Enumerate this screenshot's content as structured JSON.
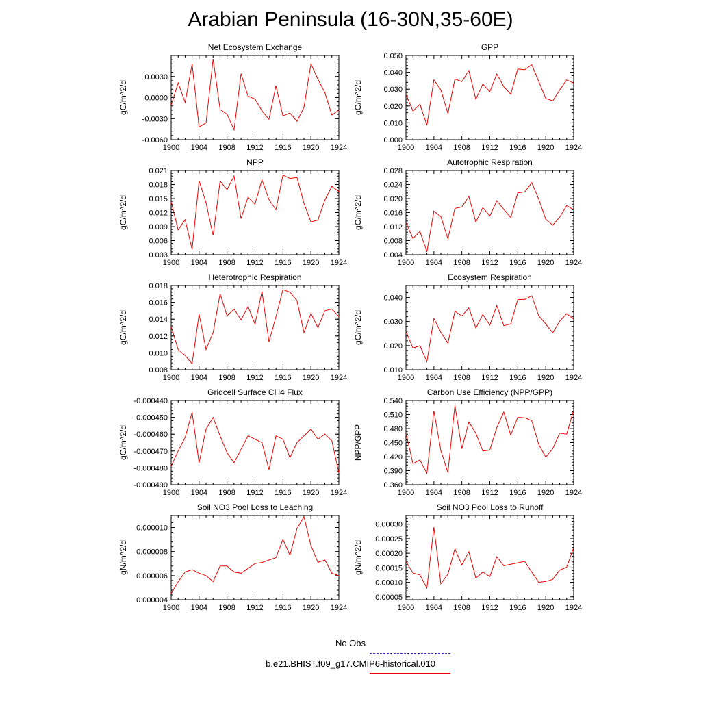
{
  "figure": {
    "title": "Arabian Peninsula (16-30N,35-60E)",
    "line_color": "#ee0000",
    "obs_color": "#3333cc"
  },
  "legend": {
    "obs_label": "No Obs",
    "model_label": "b.e21.BHIST.f09_g17.CMIP6-historical.010"
  },
  "chart_data": [
    {
      "type": "line",
      "title": "Net Ecosystem Exchange",
      "ylabel": "gC/m^2/d",
      "x": [
        1900,
        1901,
        1902,
        1903,
        1904,
        1905,
        1906,
        1907,
        1908,
        1909,
        1910,
        1911,
        1912,
        1913,
        1914,
        1915,
        1916,
        1917,
        1918,
        1919,
        1920,
        1921,
        1922,
        1923,
        1924
      ],
      "values": [
        -0.0011,
        0.0021,
        -0.0007,
        0.0048,
        -0.0042,
        -0.0036,
        0.0055,
        -0.0017,
        -0.0024,
        -0.0046,
        0.0034,
        0.0002,
        -0.0002,
        -0.0019,
        -0.0031,
        0.0017,
        -0.0026,
        -0.0022,
        -0.0034,
        -0.0014,
        0.0048,
        0.0026,
        0.0007,
        -0.0025,
        -0.0018
      ],
      "ylim": [
        -0.006,
        0.006
      ],
      "yticks": [
        "-0.0060",
        "-0.0030",
        "0.0000",
        "0.0030"
      ],
      "ytick_values": [
        -0.006,
        -0.003,
        0.0,
        0.003
      ],
      "xlim": [
        1900,
        1924
      ],
      "xticks": [
        "1900",
        "1904",
        "1908",
        "1912",
        "1916",
        "1920",
        "1924"
      ]
    },
    {
      "type": "line",
      "title": "GPP",
      "ylabel": "gC/m^2/d",
      "x": [
        1900,
        1901,
        1902,
        1903,
        1904,
        1905,
        1906,
        1907,
        1908,
        1909,
        1910,
        1911,
        1912,
        1913,
        1914,
        1915,
        1916,
        1917,
        1918,
        1919,
        1920,
        1921,
        1922,
        1923,
        1924
      ],
      "values": [
        0.027,
        0.017,
        0.021,
        0.0085,
        0.0355,
        0.0295,
        0.0155,
        0.036,
        0.0345,
        0.041,
        0.024,
        0.033,
        0.0285,
        0.039,
        0.0315,
        0.027,
        0.042,
        0.0415,
        0.0445,
        0.0345,
        0.0245,
        0.023,
        0.0295,
        0.0355,
        0.0335
      ],
      "ylim": [
        0.0,
        0.05
      ],
      "yticks": [
        "0.000",
        "0.010",
        "0.020",
        "0.030",
        "0.040",
        "0.050"
      ],
      "ytick_values": [
        0.0,
        0.01,
        0.02,
        0.03,
        0.04,
        0.05
      ],
      "xlim": [
        1900,
        1924
      ],
      "xticks": [
        "1900",
        "1904",
        "1908",
        "1912",
        "1916",
        "1920",
        "1924"
      ]
    },
    {
      "type": "line",
      "title": "NPP",
      "ylabel": "gC/m^2/d",
      "x": [
        1900,
        1901,
        1902,
        1903,
        1904,
        1905,
        1906,
        1907,
        1908,
        1909,
        1910,
        1911,
        1912,
        1913,
        1914,
        1915,
        1916,
        1917,
        1918,
        1919,
        1920,
        1921,
        1922,
        1923,
        1924
      ],
      "values": [
        0.0143,
        0.0083,
        0.0105,
        0.0041,
        0.0188,
        0.0141,
        0.0071,
        0.0187,
        0.0169,
        0.0198,
        0.0107,
        0.0153,
        0.0138,
        0.019,
        0.0148,
        0.0126,
        0.02,
        0.0193,
        0.0195,
        0.014,
        0.01,
        0.0104,
        0.0147,
        0.0176,
        0.0165
      ],
      "ylim": [
        0.003,
        0.021
      ],
      "yticks": [
        "0.003",
        "0.006",
        "0.009",
        "0.012",
        "0.015",
        "0.018",
        "0.021"
      ],
      "ytick_values": [
        0.003,
        0.006,
        0.009,
        0.012,
        0.015,
        0.018,
        0.021
      ],
      "xlim": [
        1900,
        1924
      ],
      "xticks": [
        "1900",
        "1904",
        "1908",
        "1912",
        "1916",
        "1920",
        "1924"
      ]
    },
    {
      "type": "line",
      "title": "Autotrophic Respiration",
      "ylabel": "gC/m^2/d",
      "x": [
        1900,
        1901,
        1902,
        1903,
        1904,
        1905,
        1906,
        1907,
        1908,
        1909,
        1910,
        1911,
        1912,
        1913,
        1914,
        1915,
        1916,
        1917,
        1918,
        1919,
        1920,
        1921,
        1922,
        1923,
        1924
      ],
      "values": [
        0.0132,
        0.0086,
        0.0106,
        0.0048,
        0.0164,
        0.0148,
        0.0085,
        0.0172,
        0.0176,
        0.0206,
        0.0133,
        0.0174,
        0.015,
        0.0194,
        0.0169,
        0.0146,
        0.0216,
        0.0219,
        0.0245,
        0.0198,
        0.0141,
        0.0124,
        0.0147,
        0.018,
        0.0168
      ],
      "ylim": [
        0.004,
        0.028
      ],
      "yticks": [
        "0.004",
        "0.008",
        "0.012",
        "0.016",
        "0.020",
        "0.024",
        "0.028"
      ],
      "ytick_values": [
        0.004,
        0.008,
        0.012,
        0.016,
        0.02,
        0.024,
        0.028
      ],
      "xlim": [
        1900,
        1924
      ],
      "xticks": [
        "1900",
        "1904",
        "1908",
        "1912",
        "1916",
        "1920",
        "1924"
      ]
    },
    {
      "type": "line",
      "title": "Heterotrophic Respiration",
      "ylabel": "gC/m^2/d",
      "x": [
        1900,
        1901,
        1902,
        1903,
        1904,
        1905,
        1906,
        1907,
        1908,
        1909,
        1910,
        1911,
        1912,
        1913,
        1914,
        1915,
        1916,
        1917,
        1918,
        1919,
        1920,
        1921,
        1922,
        1923,
        1924
      ],
      "values": [
        0.0131,
        0.0104,
        0.0097,
        0.0087,
        0.0146,
        0.0104,
        0.0124,
        0.017,
        0.0144,
        0.0152,
        0.0139,
        0.0155,
        0.0134,
        0.0173,
        0.0113,
        0.0143,
        0.0175,
        0.0172,
        0.0162,
        0.0124,
        0.0147,
        0.013,
        0.015,
        0.0152,
        0.0143
      ],
      "ylim": [
        0.008,
        0.018
      ],
      "yticks": [
        "0.008",
        "0.010",
        "0.012",
        "0.014",
        "0.016",
        "0.018"
      ],
      "ytick_values": [
        0.008,
        0.01,
        0.012,
        0.014,
        0.016,
        0.018
      ],
      "xlim": [
        1900,
        1924
      ],
      "xticks": [
        "1900",
        "1904",
        "1908",
        "1912",
        "1916",
        "1920",
        "1924"
      ]
    },
    {
      "type": "line",
      "title": "Ecosystem Respiration",
      "ylabel": "gC/m^2/d",
      "x": [
        1900,
        1901,
        1902,
        1903,
        1904,
        1905,
        1906,
        1907,
        1908,
        1909,
        1910,
        1911,
        1912,
        1913,
        1914,
        1915,
        1916,
        1917,
        1918,
        1919,
        1920,
        1921,
        1922,
        1923,
        1924
      ],
      "values": [
        0.026,
        0.019,
        0.02,
        0.0133,
        0.0313,
        0.0255,
        0.021,
        0.0343,
        0.0323,
        0.0357,
        0.0273,
        0.033,
        0.0285,
        0.0367,
        0.0283,
        0.029,
        0.0392,
        0.0392,
        0.0407,
        0.0324,
        0.029,
        0.0253,
        0.0302,
        0.0333,
        0.031
      ],
      "ylim": [
        0.01,
        0.045
      ],
      "yticks": [
        "0.010",
        "0.020",
        "0.030",
        "0.040"
      ],
      "ytick_values": [
        0.01,
        0.02,
        0.03,
        0.04
      ],
      "xlim": [
        1900,
        1924
      ],
      "xticks": [
        "1900",
        "1904",
        "1908",
        "1912",
        "1916",
        "1920",
        "1924"
      ]
    },
    {
      "type": "line",
      "title": "Gridcell Surface CH4 Flux",
      "ylabel": "gC/m^2/d",
      "x": [
        1900,
        1901,
        1902,
        1903,
        1904,
        1905,
        1906,
        1907,
        1908,
        1909,
        1910,
        1911,
        1912,
        1913,
        1914,
        1915,
        1916,
        1917,
        1918,
        1919,
        1920,
        1921,
        1922,
        1923,
        1924
      ],
      "values": [
        -0.000479,
        -0.00047,
        -0.000462,
        -0.000447,
        -0.000477,
        -0.000457,
        -0.00045,
        -0.000461,
        -0.000471,
        -0.000477,
        -0.000469,
        -0.000461,
        -0.000463,
        -0.000465,
        -0.000481,
        -0.000461,
        -0.000463,
        -0.000474,
        -0.000465,
        -0.000461,
        -0.000457,
        -0.000463,
        -0.00046,
        -0.000464,
        -0.000483
      ],
      "ylim": [
        -0.00049,
        -0.00044
      ],
      "yticks": [
        "-0.000490",
        "-0.000480",
        "-0.000470",
        "-0.000460",
        "-0.000450",
        "-0.000440"
      ],
      "ytick_values": [
        -0.00049,
        -0.00048,
        -0.00047,
        -0.00046,
        -0.00045,
        -0.00044
      ],
      "xlim": [
        1900,
        1924
      ],
      "xticks": [
        "1900",
        "1904",
        "1908",
        "1912",
        "1916",
        "1920",
        "1924"
      ]
    },
    {
      "type": "line",
      "title": "Carbon Use Efficiency (NPP/GPP)",
      "ylabel": "NPP/GPP",
      "x": [
        1900,
        1901,
        1902,
        1903,
        1904,
        1905,
        1906,
        1907,
        1908,
        1909,
        1910,
        1911,
        1912,
        1913,
        1914,
        1915,
        1916,
        1917,
        1918,
        1919,
        1920,
        1921,
        1922,
        1923,
        1924
      ],
      "values": [
        0.471,
        0.405,
        0.413,
        0.384,
        0.518,
        0.433,
        0.386,
        0.529,
        0.437,
        0.494,
        0.47,
        0.432,
        0.434,
        0.482,
        0.515,
        0.466,
        0.504,
        0.503,
        0.497,
        0.446,
        0.419,
        0.437,
        0.47,
        0.468,
        0.52
      ],
      "ylim": [
        0.36,
        0.54
      ],
      "yticks": [
        "0.360",
        "0.390",
        "0.420",
        "0.450",
        "0.480",
        "0.510",
        "0.540"
      ],
      "ytick_values": [
        0.36,
        0.39,
        0.42,
        0.45,
        0.48,
        0.51,
        0.54
      ],
      "xlim": [
        1900,
        1924
      ],
      "xticks": [
        "1900",
        "1904",
        "1908",
        "1912",
        "1916",
        "1920",
        "1924"
      ]
    },
    {
      "type": "line",
      "title": "Soil NO3 Pool Loss to Leaching",
      "ylabel": "gN/m^2/d",
      "x": [
        1900,
        1901,
        1902,
        1903,
        1904,
        1905,
        1906,
        1907,
        1908,
        1909,
        1910,
        1911,
        1912,
        1913,
        1914,
        1915,
        1916,
        1917,
        1918,
        1919,
        1920,
        1921,
        1922,
        1923,
        1924
      ],
      "values": [
        4.5e-06,
        5.5e-06,
        6.3e-06,
        6.5e-06,
        6.2e-06,
        6e-06,
        5.5e-06,
        6.8e-06,
        6.8e-06,
        6.3e-06,
        6.2e-06,
        6.6e-06,
        7e-06,
        7.1e-06,
        7.3e-06,
        7.5e-06,
        9e-06,
        7.7e-06,
        9.9e-06,
        1.09e-05,
        8.5e-06,
        7.1e-06,
        7.3e-06,
        6.2e-06,
        6e-06
      ],
      "ylim": [
        4e-06,
        1.1e-05
      ],
      "yticks": [
        "0.000004",
        "0.000006",
        "0.000008",
        "0.000010"
      ],
      "ytick_values": [
        4e-06,
        6e-06,
        8e-06,
        1e-05
      ],
      "xlim": [
        1900,
        1924
      ],
      "xticks": [
        "1900",
        "1904",
        "1908",
        "1912",
        "1916",
        "1920",
        "1924"
      ]
    },
    {
      "type": "line",
      "title": "Soil NO3 Pool Loss to Runoff",
      "ylabel": "gN/m^2/d",
      "x": [
        1900,
        1901,
        1902,
        1903,
        1904,
        1905,
        1906,
        1907,
        1908,
        1909,
        1910,
        1911,
        1912,
        1913,
        1914,
        1915,
        1916,
        1917,
        1918,
        1919,
        1920,
        1921,
        1922,
        1923,
        1924
      ],
      "values": [
        0.000172,
        0.000132,
        0.000125,
        8e-05,
        0.00029,
        9.5e-05,
        0.000128,
        0.000215,
        0.00016,
        0.000205,
        0.000115,
        0.000135,
        0.00012,
        0.000188,
        0.000157,
        0.000162,
        0.000167,
        0.000172,
        0.000135,
        0.0001,
        0.000103,
        0.00011,
        0.000142,
        0.000152,
        0.00022
      ],
      "ylim": [
        4e-05,
        0.00033
      ],
      "yticks": [
        "0.00005",
        "0.00010",
        "0.00015",
        "0.00020",
        "0.00025",
        "0.00030"
      ],
      "ytick_values": [
        5e-05,
        0.0001,
        0.00015,
        0.0002,
        0.00025,
        0.0003
      ],
      "xlim": [
        1900,
        1924
      ],
      "xticks": [
        "1900",
        "1904",
        "1908",
        "1912",
        "1916",
        "1920",
        "1924"
      ]
    }
  ]
}
